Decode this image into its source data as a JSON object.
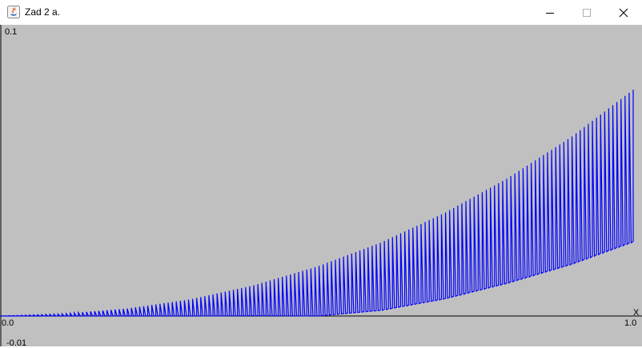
{
  "window": {
    "title": "Zad 2 a.",
    "app_icon": "java-icon",
    "controls": [
      "minimize-icon",
      "maximize-icon",
      "close-icon"
    ]
  },
  "plot": {
    "background": "#c0c0c0",
    "line_color": "#0000ff",
    "axis_color": "#000000",
    "labels": {
      "y_max": "0.1",
      "y_min": "-0.01",
      "x_min": "0.0",
      "x_max": "1.0",
      "x_axis": "X"
    }
  },
  "chart_data": {
    "type": "line",
    "title": "",
    "xlabel": "X",
    "ylabel": "",
    "xlim": [
      0.0,
      1.0
    ],
    "ylim": [
      -0.01,
      0.1
    ],
    "grid": false,
    "series": [
      {
        "color": "#0000ff",
        "x": [
          0.0,
          0.1,
          0.2,
          0.3,
          0.4,
          0.5,
          0.6,
          0.7,
          0.8,
          0.9,
          1.0
        ],
        "upper_envelope": [
          0.0,
          0.0008,
          0.0026,
          0.0058,
          0.0107,
          0.0172,
          0.0255,
          0.0357,
          0.0478,
          0.062,
          0.0788
        ],
        "lower_envelope": [
          0.0,
          0.0,
          0.0,
          0.0,
          0.0001,
          0.0,
          0.002,
          0.006,
          0.0115,
          0.018,
          0.026
        ],
        "oscillations": 155
      }
    ]
  }
}
